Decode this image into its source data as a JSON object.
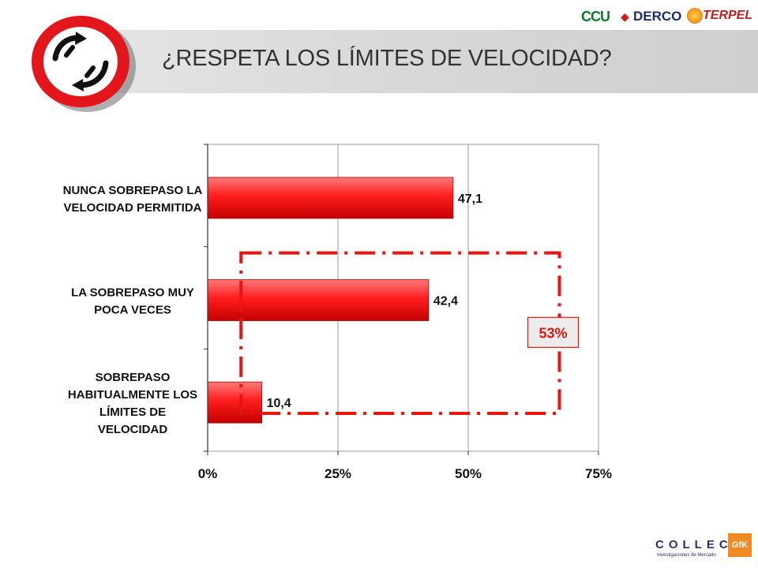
{
  "header": {
    "title": "¿RESPETA LOS LÍMITES DE VELOCIDAD?"
  },
  "sponsors": [
    {
      "name": "CCU",
      "color": "#0b7a2e"
    },
    {
      "name": "DERCO",
      "color": "#1f2a6b"
    },
    {
      "name": "TERPEL",
      "color": "#c0201e"
    }
  ],
  "footer": {
    "logo_word": "COLLECT",
    "logo_sub": "Investigaciones de Mercado",
    "partner": "GfK"
  },
  "colors": {
    "bar": "#ff1e1e",
    "bar_edge": "#b00000",
    "annotation": "#e8140f",
    "plot_border": "#9a9a9a"
  },
  "chart_data": {
    "type": "bar",
    "orientation": "horizontal",
    "categories": [
      "NUNCA SOBREPASO LA VELOCIDAD PERMITIDA",
      "LA SOBREPASO MUY POCA VECES",
      "SOBREPASO HABITUALMENTE LOS LÍMITES DE VELOCIDAD"
    ],
    "category_lines": [
      [
        "NUNCA SOBREPASO LA",
        "VELOCIDAD PERMITIDA"
      ],
      [
        "LA SOBREPASO MUY",
        "POCA VECES"
      ],
      [
        "SOBREPASO",
        "HABITUALMENTE LOS",
        "LÍMITES DE",
        "VELOCIDAD"
      ]
    ],
    "values": [
      47.1,
      42.4,
      10.4
    ],
    "value_labels": [
      "47,1",
      "42,4",
      "10,4"
    ],
    "xlim": [
      0,
      75
    ],
    "xticks": [
      0,
      25,
      50,
      75
    ],
    "xtick_labels": [
      "0%",
      "25%",
      "50%",
      "75%"
    ],
    "grid": "vertical",
    "annotation": {
      "label": "53%",
      "groups": [
        "LA SOBREPASO MUY POCA VECES",
        "SOBREPASO HABITUALMENTE LOS LÍMITES DE VELOCIDAD"
      ],
      "style": "dash-dot box"
    }
  }
}
